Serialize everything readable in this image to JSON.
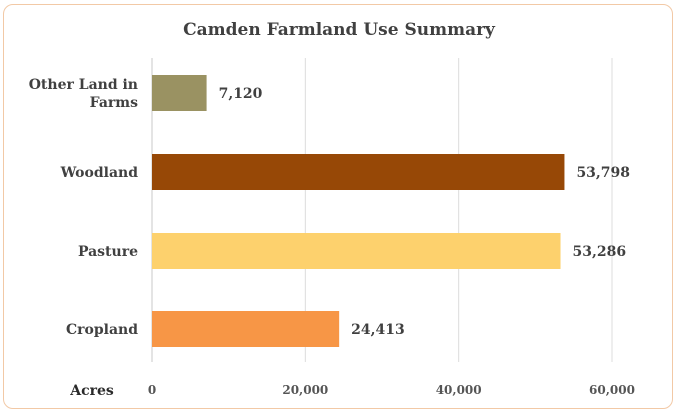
{
  "chart_data": {
    "type": "bar",
    "orientation": "horizontal",
    "title": "Camden Farmland Use Summary",
    "xlabel": "Acres",
    "ylabel": "",
    "categories": [
      "Other Land in Farms",
      "Woodland",
      "Pasture",
      "Cropland"
    ],
    "category_lines": [
      [
        "Other Land in",
        "Farms"
      ],
      [
        "Woodland"
      ],
      [
        "Pasture"
      ],
      [
        "Cropland"
      ]
    ],
    "values": [
      7120,
      53798,
      53286,
      24413
    ],
    "value_labels": [
      "7,120",
      "53,798",
      "53,286",
      "24,413"
    ],
    "colors": [
      "#9a9262",
      "#974806",
      "#fdd16d",
      "#f79646"
    ],
    "xlim": [
      0,
      60000
    ],
    "x_ticks": [
      0,
      20000,
      40000,
      60000
    ],
    "x_tick_labels": [
      "0",
      "20,000",
      "40,000",
      "60,000"
    ],
    "grid": "vertical",
    "legend": "none"
  }
}
